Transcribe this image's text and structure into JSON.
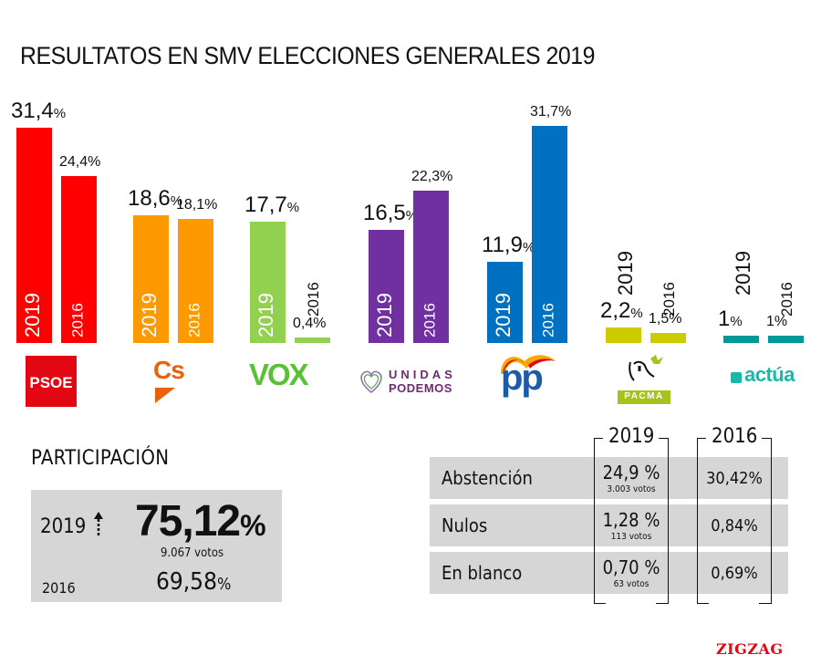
{
  "title": "RESULTATOS EN SMV ELECCIONES GENERALES 2019",
  "chart_data": {
    "type": "bar",
    "title": "RESULTATOS EN SMV ELECCIONES GENERALES 2019",
    "categories": [
      "PSOE",
      "Cs",
      "VOX",
      "UNIDAS PODEMOS",
      "PP",
      "PACMA",
      "actúa"
    ],
    "series": [
      {
        "name": "2019",
        "values": [
          31.4,
          18.6,
          17.7,
          16.5,
          11.9,
          2.2,
          1.0
        ],
        "labels": [
          "31,4",
          "18,6",
          "17,7",
          "16,5",
          "11,9",
          "2,2",
          "1"
        ]
      },
      {
        "name": "2016",
        "values": [
          24.4,
          18.1,
          0.4,
          22.3,
          31.7,
          1.5,
          1.0
        ],
        "labels": [
          "24,4%",
          "18,1%",
          "0,4%",
          "22,3%",
          "31,7%",
          "1,5%",
          "1%"
        ]
      }
    ],
    "colors": [
      "#ff0000",
      "#ff9900",
      "#92d050",
      "#7030a0",
      "#0070c0",
      "#cccc00",
      "#009999"
    ],
    "unit": "%",
    "xlabel": "",
    "ylabel": "",
    "ylim": [
      0,
      32
    ],
    "grid": false,
    "legend": "none"
  },
  "years": {
    "y2019": "2019",
    "y2016": "2016"
  },
  "pct_sign": "%",
  "logos": {
    "psoe": "PSOE",
    "cs": "Cs",
    "vox": "VOX",
    "podemos_line1": "UNIDAS",
    "podemos_line2": "PODEMOS",
    "pp": "pp",
    "pacma": "PACMA",
    "actua": "actúa"
  },
  "participation": {
    "title": "PARTICIPACIÓN",
    "year_2019": "2019",
    "value_2019": "75,12",
    "votes_2019": "9.067 votos",
    "year_2016": "2016",
    "value_2016": "69,58",
    "arrow_icon": "arrow-up-icon"
  },
  "table": {
    "col_2019": "2019",
    "col_2016": "2016",
    "rows": [
      {
        "label": "Abstención",
        "v2019": "24,9 %",
        "votes": "3.003 votos",
        "v2016": "30,42%"
      },
      {
        "label": "Nulos",
        "v2019": "1,28 %",
        "votes": "113 votos",
        "v2016": "0,84%"
      },
      {
        "label": "En blanco",
        "v2019": "0,70 %",
        "votes": "63 votos",
        "v2016": "0,69%"
      }
    ]
  },
  "brand": "ZIGZAG"
}
